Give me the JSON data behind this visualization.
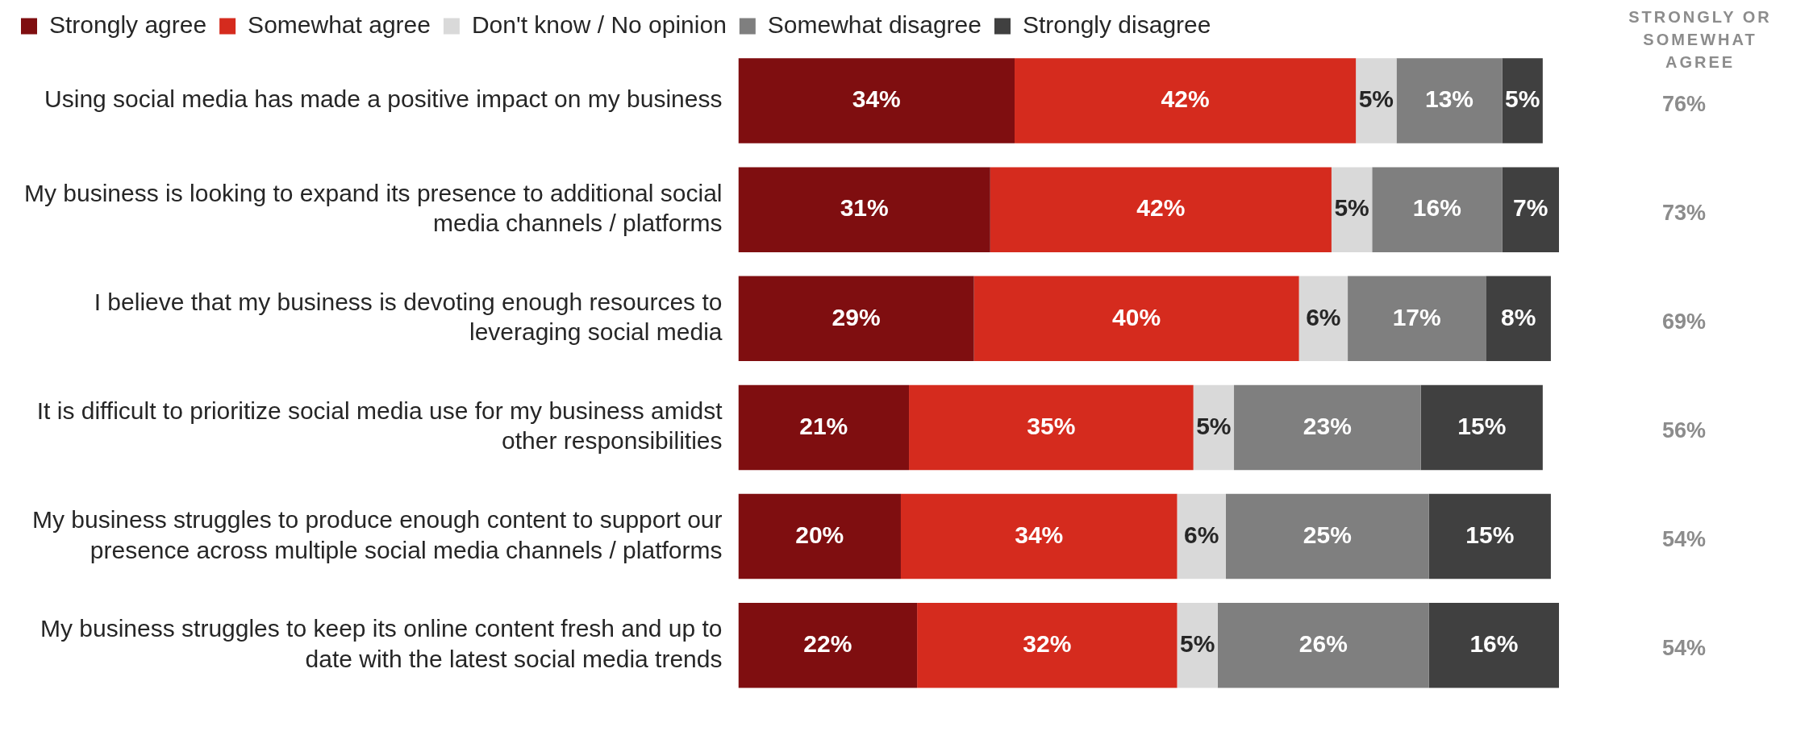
{
  "chart_data": {
    "type": "bar",
    "orientation": "horizontal",
    "stacked": true,
    "legend": "top",
    "grid": false,
    "tick_labels": "y",
    "categories": [
      "Using social media has made a positive impact on my business",
      "My business is looking to expand its presence to additional social media channels / platforms",
      "I believe that my business is devoting enough resources to leveraging social media",
      "It is difficult to prioritize social media use for my business amidst other responsibilities",
      "My business struggles to produce enough content to support our presence across multiple social media channels / platforms",
      "My business struggles to keep its online content fresh and up to date with the latest social media trends"
    ],
    "series": [
      {
        "name": "Strongly agree",
        "color": "#7f0e10",
        "values": [
          34,
          31,
          29,
          21,
          20,
          22
        ],
        "value_labels": [
          "34%",
          "31%",
          "29%",
          "21%",
          "20%",
          "22%"
        ]
      },
      {
        "name": "Somewhat agree",
        "color": "#d52b1e",
        "values": [
          42,
          42,
          40,
          35,
          34,
          32
        ],
        "value_labels": [
          "42%",
          "42%",
          "40%",
          "35%",
          "34%",
          "32%"
        ]
      },
      {
        "name": "Don't know / No opinion",
        "color": "#d9d9d9",
        "values": [
          5,
          5,
          6,
          5,
          6,
          5
        ],
        "value_labels": [
          "5%",
          "5%",
          "6%",
          "5%",
          "6%",
          "5%"
        ]
      },
      {
        "name": "Somewhat disagree",
        "color": "#7f7f7f",
        "values": [
          13,
          16,
          17,
          23,
          25,
          26
        ],
        "value_labels": [
          "13%",
          "16%",
          "17%",
          "23%",
          "25%",
          "26%"
        ]
      },
      {
        "name": "Strongly disagree",
        "color": "#404040",
        "values": [
          5,
          7,
          8,
          15,
          15,
          16
        ],
        "value_labels": [
          "5%",
          "7%",
          "8%",
          "15%",
          "15%",
          "16%"
        ]
      }
    ],
    "annotations": [
      "STRONGLY OR SOMEWHAT AGREE",
      "76%",
      "73%",
      "69%",
      "56%",
      "54%",
      "54%"
    ]
  }
}
